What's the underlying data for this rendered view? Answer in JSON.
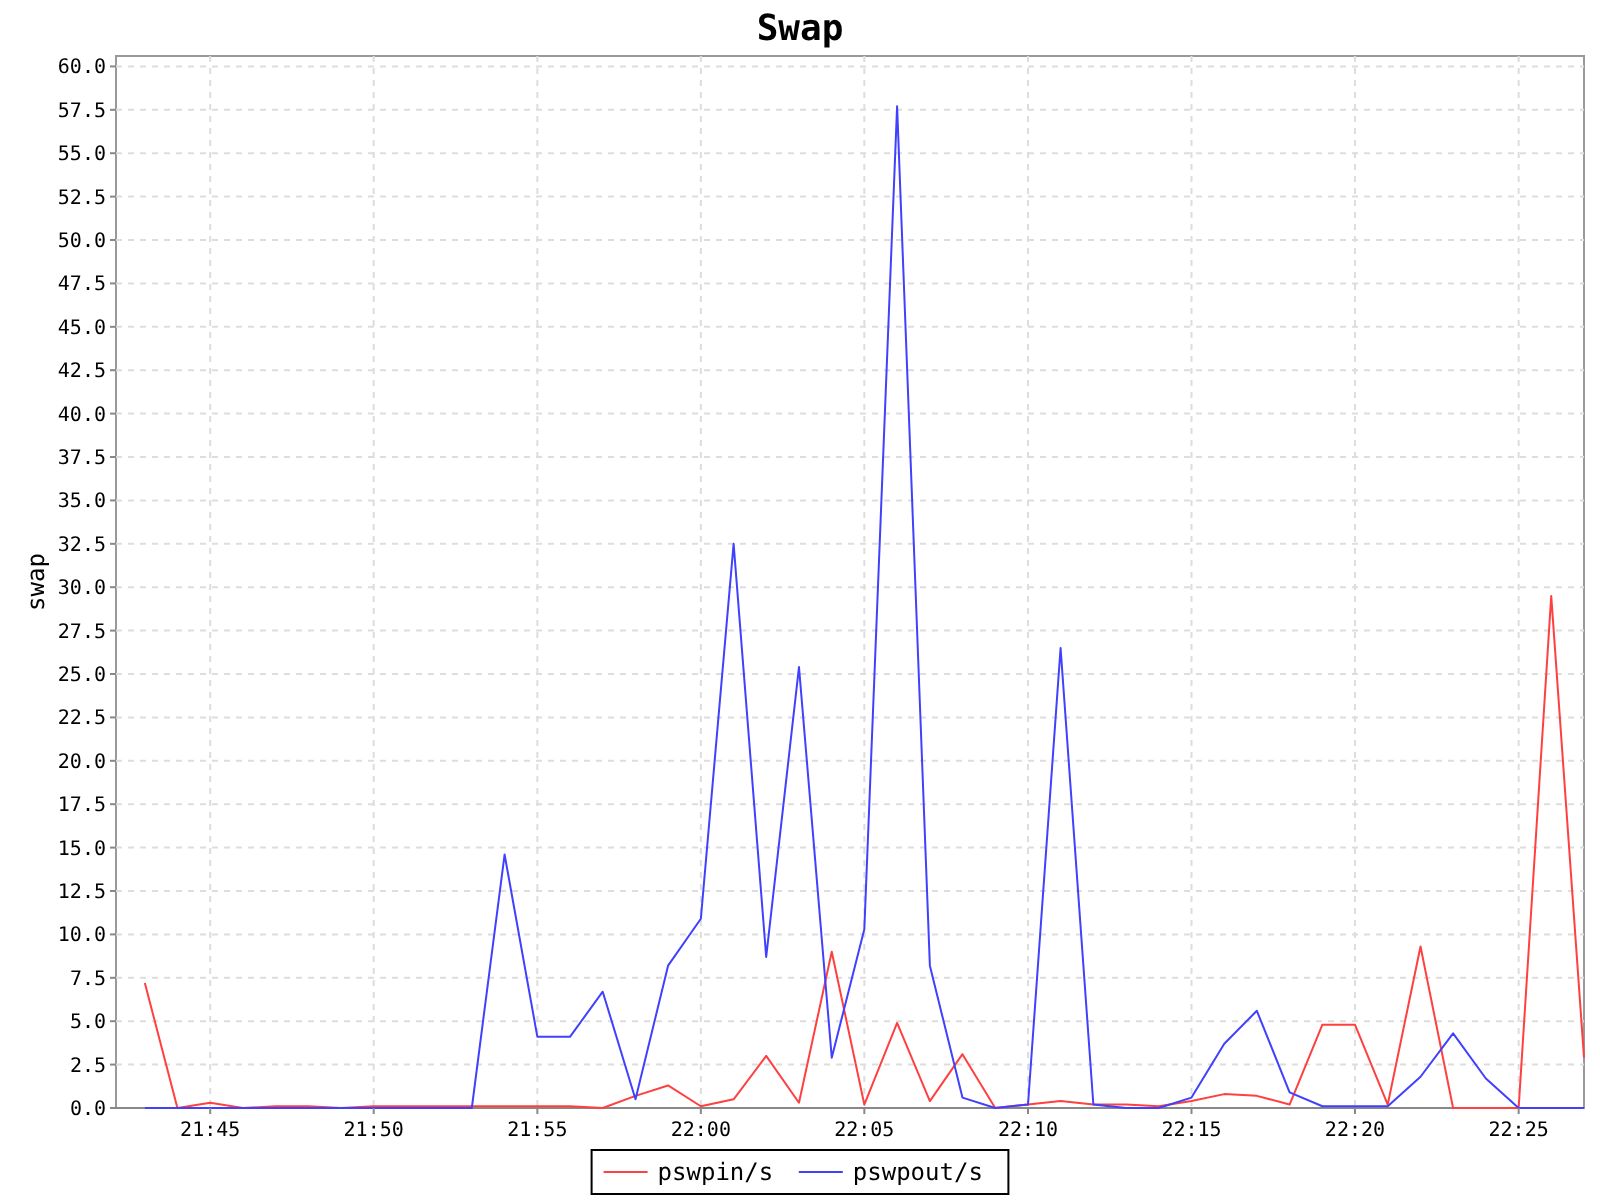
{
  "chart_data": {
    "type": "line",
    "title": "Swap",
    "ylabel": "swap",
    "x": [
      21.7167,
      21.7333,
      21.75,
      21.7667,
      21.7833,
      21.8,
      21.8167,
      21.8333,
      21.85,
      21.8667,
      21.8833,
      21.9,
      21.9167,
      21.9333,
      21.95,
      21.9667,
      21.9833,
      22.0,
      22.0167,
      22.0333,
      22.05,
      22.0667,
      22.0833,
      22.1,
      22.1167,
      22.1333,
      22.15,
      22.1667,
      22.1833,
      22.2,
      22.2167,
      22.2333,
      22.25,
      22.2667,
      22.2833,
      22.3,
      22.3167,
      22.3333,
      22.35,
      22.3667,
      22.3833,
      22.4,
      22.4167,
      22.4333,
      22.45
    ],
    "series": [
      {
        "name": "pswpin/s",
        "color": "#ff4040",
        "values": [
          7.2,
          0,
          0.3,
          0,
          0.1,
          0.1,
          0,
          0.1,
          0.1,
          0.1,
          0.1,
          0.1,
          0.1,
          0.1,
          0,
          0.7,
          1.3,
          0.1,
          0.5,
          3.0,
          0.3,
          9.0,
          0.2,
          4.9,
          0.4,
          3.1,
          0,
          0.2,
          0.4,
          0.2,
          0.2,
          0.1,
          0.4,
          0.8,
          0.7,
          0.2,
          4.8,
          4.8,
          0.2,
          9.3,
          0,
          0,
          0,
          29.5,
          2.9
        ]
      },
      {
        "name": "pswpout/s",
        "color": "#4040ff",
        "values": [
          0,
          0,
          0,
          0,
          0,
          0,
          0,
          0,
          0,
          0,
          0,
          14.6,
          4.1,
          4.1,
          6.7,
          0.5,
          8.2,
          10.9,
          32.5,
          8.7,
          25.4,
          2.9,
          10.3,
          57.7,
          8.2,
          0.6,
          0,
          0.2,
          26.5,
          0.2,
          0,
          0,
          0.6,
          3.7,
          5.6,
          0.9,
          0.1,
          0.1,
          0.1,
          1.8,
          4.3,
          1.7,
          0,
          0,
          0
        ]
      }
    ],
    "xlim": [
      21.702,
      22.45
    ],
    "xticks": [
      {
        "value": 21.75,
        "label": "21:45"
      },
      {
        "value": 21.8333,
        "label": "21:50"
      },
      {
        "value": 21.9167,
        "label": "21:55"
      },
      {
        "value": 22.0,
        "label": "22:00"
      },
      {
        "value": 22.0833,
        "label": "22:05"
      },
      {
        "value": 22.1667,
        "label": "22:10"
      },
      {
        "value": 22.25,
        "label": "22:15"
      },
      {
        "value": 22.3333,
        "label": "22:20"
      },
      {
        "value": 22.4167,
        "label": "22:25"
      }
    ],
    "ylim": [
      0,
      60.6
    ],
    "yticks": [
      {
        "value": 0,
        "label": "0.0"
      },
      {
        "value": 2.5,
        "label": "2.5"
      },
      {
        "value": 5,
        "label": "5.0"
      },
      {
        "value": 7.5,
        "label": "7.5"
      },
      {
        "value": 10,
        "label": "10.0"
      },
      {
        "value": 12.5,
        "label": "12.5"
      },
      {
        "value": 15,
        "label": "15.0"
      },
      {
        "value": 17.5,
        "label": "17.5"
      },
      {
        "value": 20,
        "label": "20.0"
      },
      {
        "value": 22.5,
        "label": "22.5"
      },
      {
        "value": 25,
        "label": "25.0"
      },
      {
        "value": 27.5,
        "label": "27.5"
      },
      {
        "value": 30,
        "label": "30.0"
      },
      {
        "value": 32.5,
        "label": "32.5"
      },
      {
        "value": 35,
        "label": "35.0"
      },
      {
        "value": 37.5,
        "label": "37.5"
      },
      {
        "value": 40,
        "label": "40.0"
      },
      {
        "value": 42.5,
        "label": "42.5"
      },
      {
        "value": 45,
        "label": "45.0"
      },
      {
        "value": 47.5,
        "label": "47.5"
      },
      {
        "value": 50,
        "label": "50.0"
      },
      {
        "value": 52.5,
        "label": "52.5"
      },
      {
        "value": 55,
        "label": "55.0"
      },
      {
        "value": 57.5,
        "label": "57.5"
      },
      {
        "value": 60,
        "label": "60.0"
      }
    ],
    "grid": true,
    "legend": "bottom",
    "marker": "none",
    "line_style": "solid"
  }
}
